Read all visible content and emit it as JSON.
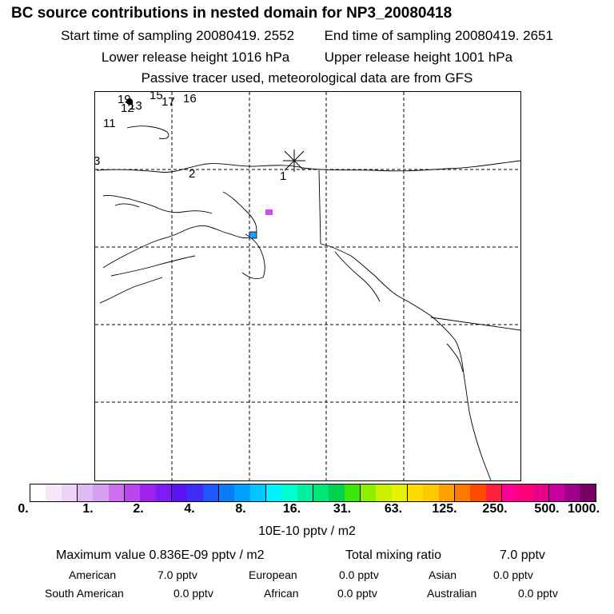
{
  "title": "BC  source contributions in nested domain for NP3_20080418",
  "header": {
    "start_label": "Start time of sampling 20080419.  2552",
    "end_label": "End time of sampling 20080419.  2651",
    "lower_label": "Lower release height 1016 hPa",
    "upper_label": "Upper release height 1001 hPa",
    "tracer_label": "Passive tracer used, meteorological data are from GFS"
  },
  "map": {
    "point_labels": [
      "19",
      "12",
      "13",
      "15",
      "17",
      "16",
      "11",
      "3",
      "2",
      "1"
    ],
    "receptor_marker": "star"
  },
  "colorbar": {
    "colors": [
      "#ffffff",
      "#f5e6fb",
      "#ecd2f7",
      "#e0b8f3",
      "#d6a0ef",
      "#cf6cf0",
      "#b946ef",
      "#a020f0",
      "#7f1cf5",
      "#5a14f5",
      "#3f2cf8",
      "#1e58fb",
      "#0a7cf8",
      "#00a0ff",
      "#00c8ff",
      "#00f0ff",
      "#00ffd2",
      "#00f0a0",
      "#00e678",
      "#00d250",
      "#3ce60a",
      "#8cf000",
      "#c8f000",
      "#e6f000",
      "#ffdc00",
      "#ffc800",
      "#ffa000",
      "#ff7800",
      "#ff4b00",
      "#ff1e3c",
      "#ff0096",
      "#ff0078",
      "#e6008c",
      "#c800a0",
      "#a0008c",
      "#780064"
    ],
    "tick_labels": [
      "0.",
      "1.",
      "2.",
      "4.",
      "8.",
      "16.",
      "31.",
      "63.",
      "125.",
      "250.",
      "500.",
      "1000."
    ],
    "unit_label": "10E-10 pptv / m2"
  },
  "summary": {
    "max_label": "Maximum value  0.836E-09 pptv / m2",
    "total_label": "Total mixing ratio",
    "total_value": "7.0 pptv",
    "american_label": "American",
    "american_value": "7.0 pptv",
    "european_label": "European",
    "european_value": "0.0 pptv",
    "asian_label": "Asian",
    "asian_value": "0.0 pptv",
    "south_american_label": "South American",
    "south_american_value": "0.0 pptv",
    "african_label": "African",
    "african_value": "0.0 pptv",
    "australian_label": "Australian",
    "australian_value": "0.0 pptv"
  }
}
